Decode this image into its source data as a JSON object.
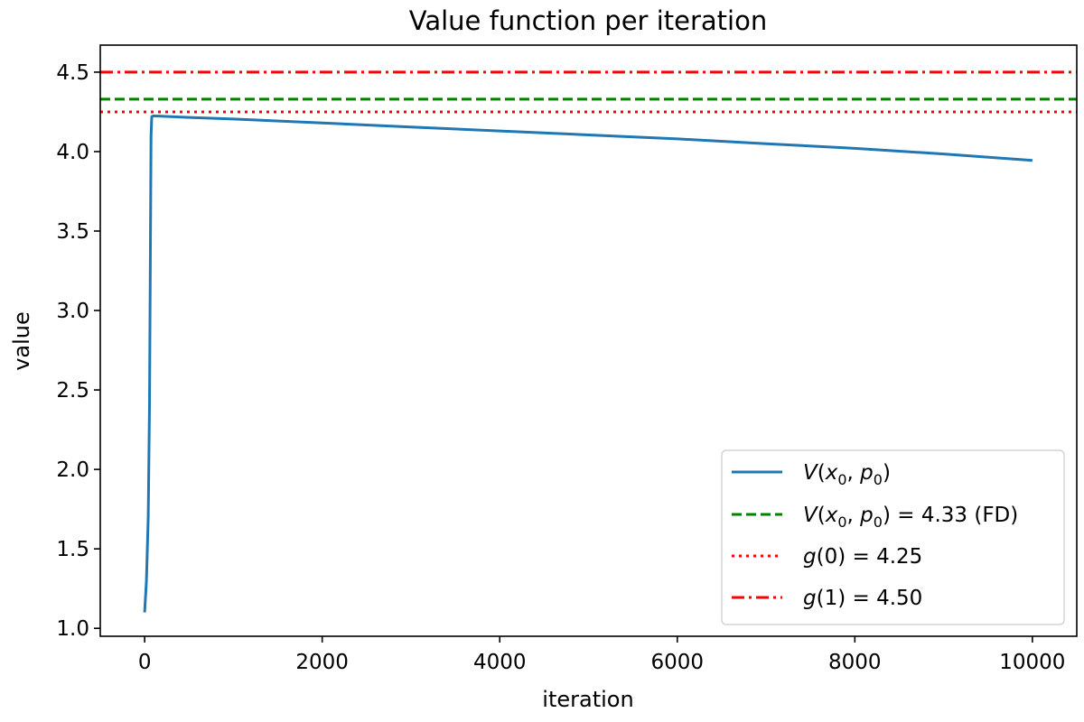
{
  "chart_data": {
    "type": "line",
    "title": "Value function per iteration",
    "xlabel": "iteration",
    "ylabel": "value",
    "xlim": [
      -500,
      10500
    ],
    "ylim": [
      0.95,
      4.67
    ],
    "xticks": [
      0,
      2000,
      4000,
      6000,
      8000,
      10000
    ],
    "xtick_labels": [
      "0",
      "2000",
      "4000",
      "6000",
      "8000",
      "10000"
    ],
    "yticks": [
      1.0,
      1.5,
      2.0,
      2.5,
      3.0,
      3.5,
      4.0,
      4.5
    ],
    "ytick_labels": [
      "1.0",
      "1.5",
      "2.0",
      "2.5",
      "3.0",
      "3.5",
      "4.0",
      "4.5"
    ],
    "grid": false,
    "legend_position": "lower-right",
    "series": [
      {
        "name": "V(x0, p0)",
        "style": "solid",
        "color": "#1f77b4",
        "points": [
          [
            0,
            1.1
          ],
          [
            20,
            1.3
          ],
          [
            40,
            1.7
          ],
          [
            55,
            2.4
          ],
          [
            65,
            3.4
          ],
          [
            72,
            4.1
          ],
          [
            80,
            4.22
          ],
          [
            100,
            4.225
          ],
          [
            500,
            4.215
          ],
          [
            1000,
            4.205
          ],
          [
            2000,
            4.18
          ],
          [
            3000,
            4.155
          ],
          [
            4000,
            4.13
          ],
          [
            5000,
            4.105
          ],
          [
            6000,
            4.08
          ],
          [
            7000,
            4.05
          ],
          [
            8000,
            4.02
          ],
          [
            9000,
            3.985
          ],
          [
            10000,
            3.945
          ]
        ]
      },
      {
        "name": "V(x0, p0) = 4.33 (FD)",
        "style": "dashed",
        "color": "#008000",
        "hline": 4.33
      },
      {
        "name": "g(0) = 4.25",
        "style": "dotted",
        "color": "#ff0000",
        "hline": 4.25
      },
      {
        "name": "g(1) = 4.50",
        "style": "dashdot",
        "color": "#ff0000",
        "hline": 4.5
      }
    ],
    "legend": [
      {
        "style": "solid",
        "color": "#1f77b4",
        "func": "V",
        "arg1": "x",
        "arg2": "p",
        "sub": "0",
        "rest": ""
      },
      {
        "style": "dashed",
        "color": "#008000",
        "func": "V",
        "arg1": "x",
        "arg2": "p",
        "sub": "0",
        "rest": " = 4.33 (FD)"
      },
      {
        "style": "dotted",
        "color": "#ff0000",
        "func": "g",
        "text": "(0) = 4.25"
      },
      {
        "style": "dashdot",
        "color": "#ff0000",
        "func": "g",
        "text": "(1) = 4.50"
      }
    ]
  }
}
